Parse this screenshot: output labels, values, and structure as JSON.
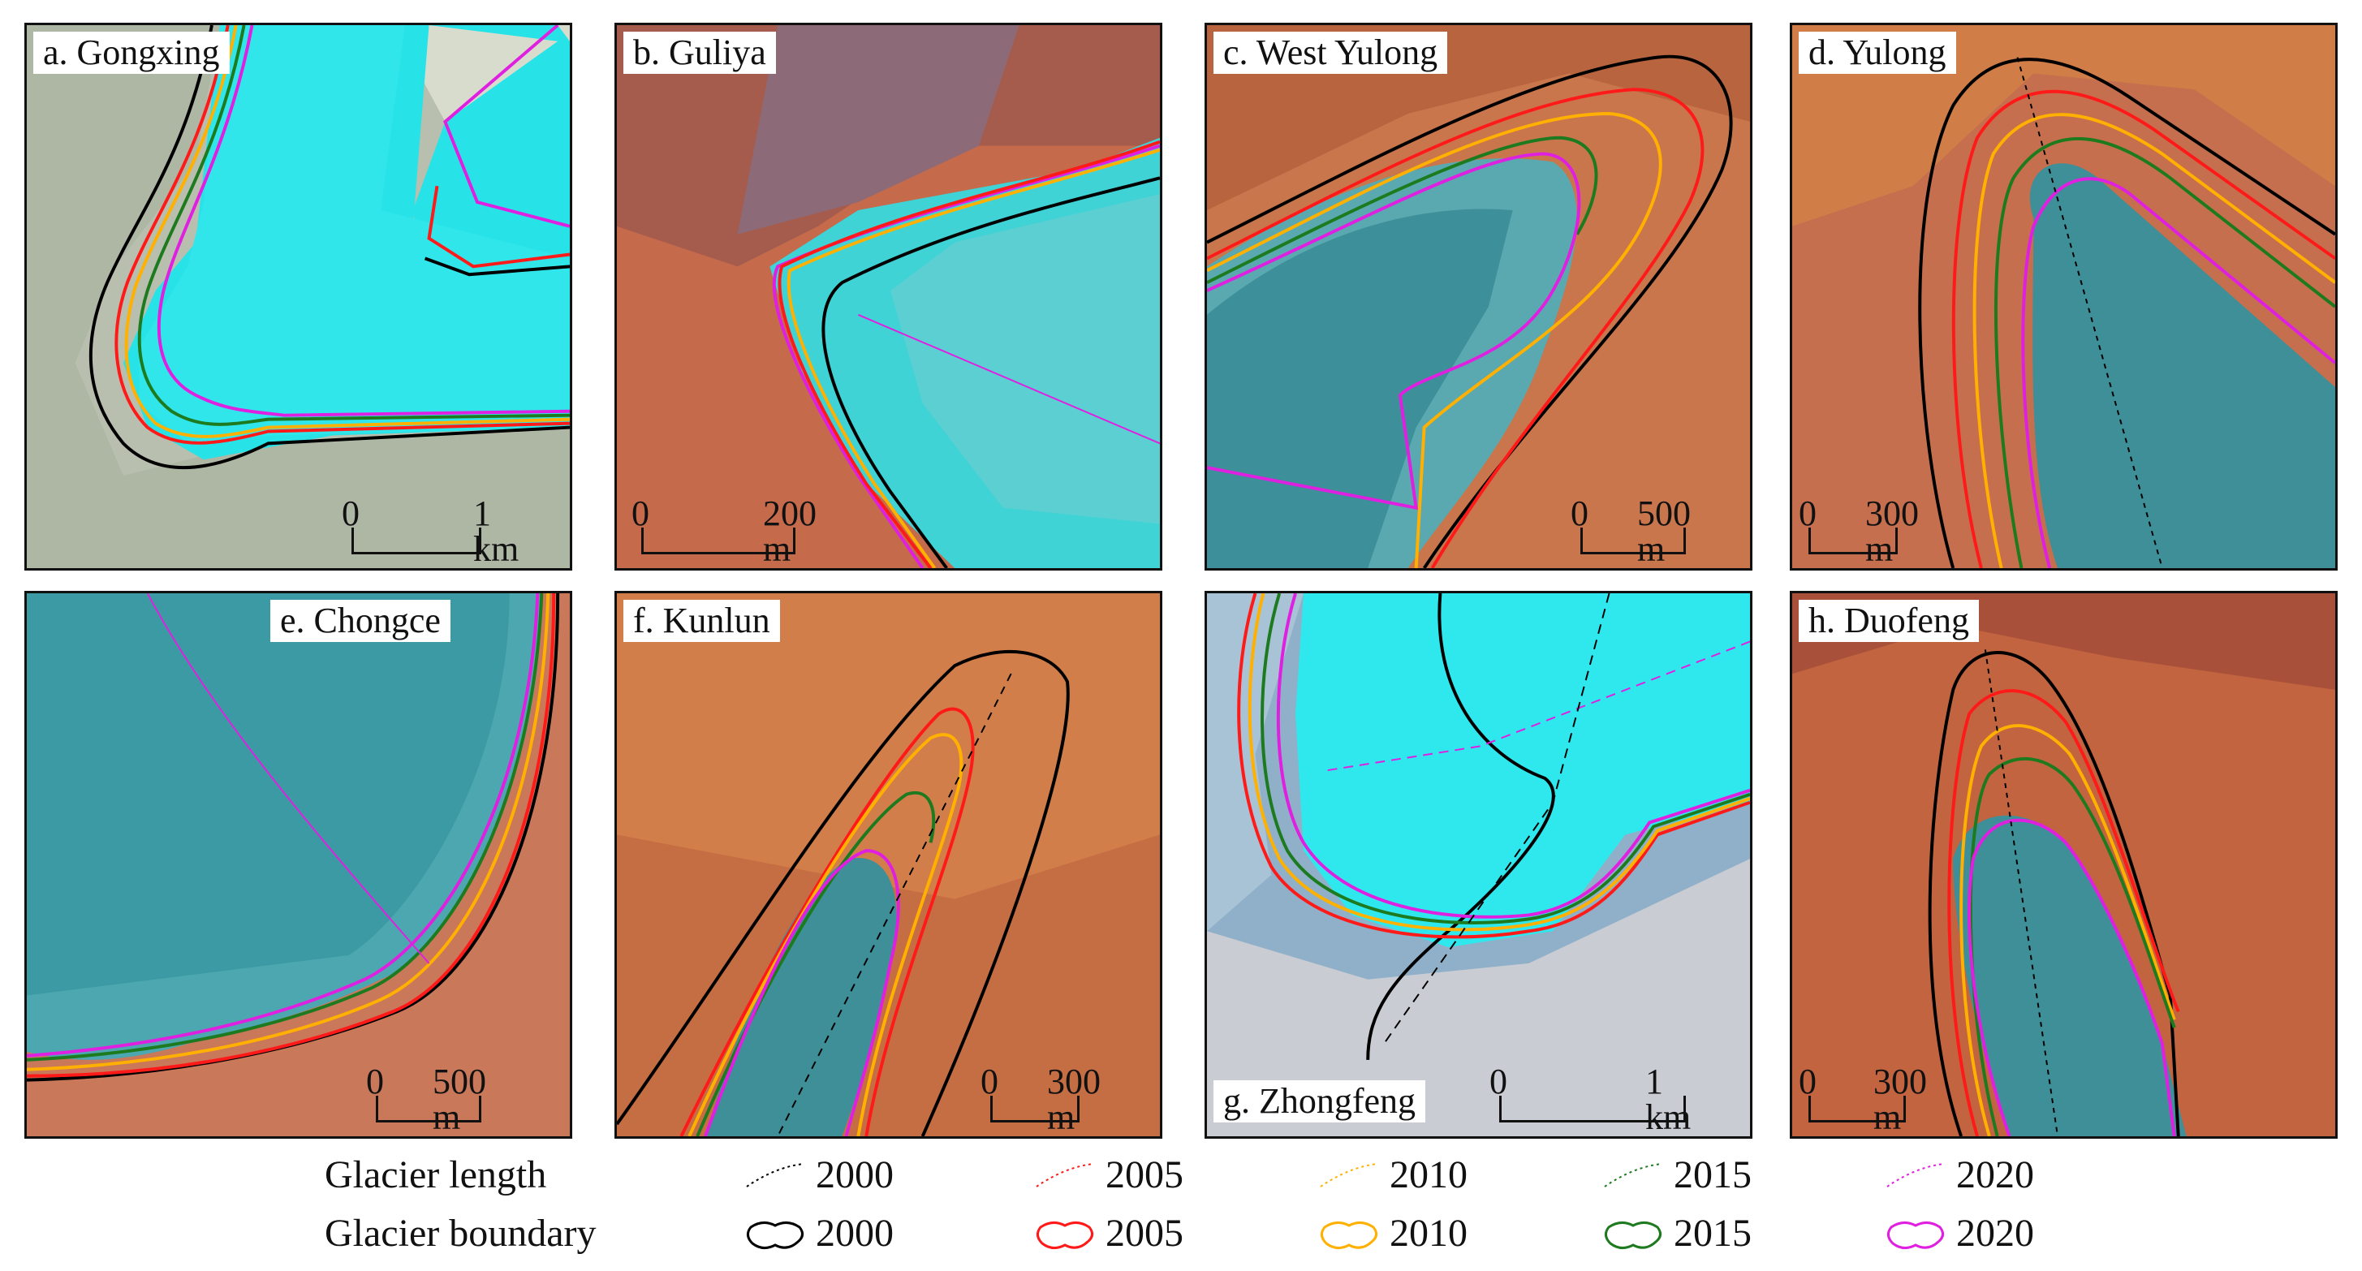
{
  "panels": [
    {
      "label": "a. Gongxing",
      "scale_zero": "0",
      "scale_end": "1 km"
    },
    {
      "label": "b. Guliya",
      "scale_zero": "0",
      "scale_end": "200 m"
    },
    {
      "label": "c. West Yulong",
      "scale_zero": "0",
      "scale_end": "500 m"
    },
    {
      "label": "d. Yulong",
      "scale_zero": "0",
      "scale_end": "300 m"
    },
    {
      "label": "e. Chongce",
      "scale_zero": "0",
      "scale_end": "500 m"
    },
    {
      "label": "f. Kunlun",
      "scale_zero": "0",
      "scale_end": "300 m"
    },
    {
      "label": "g. Zhongfeng",
      "scale_zero": "0",
      "scale_end": "1 km"
    },
    {
      "label": "h. Duofeng",
      "scale_zero": "0",
      "scale_end": "300 m"
    }
  ],
  "legend": {
    "length_title": "Glacier length",
    "boundary_title": "Glacier boundary",
    "years": [
      "2000",
      "2005",
      "2010",
      "2015",
      "2020"
    ],
    "colors": {
      "2000": "#000000",
      "2005": "#ff1a1a",
      "2010": "#ffb000",
      "2015": "#1e7a1e",
      "2020": "#e020e0"
    }
  }
}
